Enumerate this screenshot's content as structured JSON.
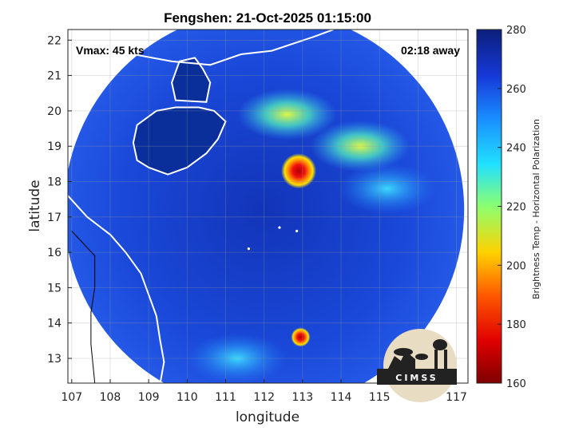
{
  "chart_data": {
    "type": "heatmap",
    "title": "Fengshen: 21-Oct-2025 01:15:00",
    "xlabel": "longitude",
    "ylabel": "latitude",
    "xlim": [
      106.9,
      117.3
    ],
    "ylim": [
      12.3,
      22.3
    ],
    "xticks": [
      107,
      108,
      109,
      110,
      111,
      112,
      113,
      114,
      115,
      116,
      117
    ],
    "yticks": [
      13,
      14,
      15,
      16,
      17,
      18,
      19,
      20,
      21,
      22
    ],
    "grid": true,
    "colorbar": {
      "label": "Brightness Temp - Horizontal Polarization",
      "min": 160,
      "max": 280,
      "ticks": [
        160,
        180,
        200,
        220,
        240,
        260,
        280
      ]
    },
    "annotations": {
      "vmax": "Vmax: 45 kts",
      "time_away": "02:18 away"
    },
    "swath": {
      "center_lon": 112.0,
      "center_lat": 17.2,
      "radius_deg": 5.2
    },
    "features": [
      {
        "kind": "core",
        "lon": 112.9,
        "lat": 18.3,
        "value": 172
      },
      {
        "kind": "core",
        "lon": 112.95,
        "lat": 13.6,
        "value": 178
      },
      {
        "kind": "rainband",
        "lon": 114.5,
        "lat": 19.0,
        "value": 232
      },
      {
        "kind": "rainband",
        "lon": 112.6,
        "lat": 19.9,
        "value": 232
      },
      {
        "kind": "rainband",
        "lon": 115.2,
        "lat": 17.8,
        "value": 240
      },
      {
        "kind": "rainband",
        "lon": 111.3,
        "lat": 13.0,
        "value": 245
      }
    ]
  },
  "logo": {
    "text": "CIMSS"
  },
  "colors": {
    "ocean_deep": "#1640c8",
    "land": "#0a2f9a",
    "coastline": "#ffffff",
    "border": "#000000"
  }
}
